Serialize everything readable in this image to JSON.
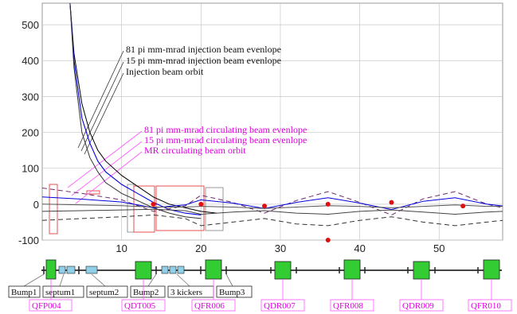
{
  "chart_data": {
    "type": "line",
    "xlabel": "",
    "ylabel": "",
    "xlim": [
      0,
      58
    ],
    "ylim": [
      -100,
      560
    ],
    "x_ticks": [
      "10",
      "20",
      "30",
      "40",
      "50"
    ],
    "y_ticks": [
      "500",
      "400",
      "300",
      "200",
      "100",
      "0",
      "-100"
    ],
    "annotations": {
      "injection": [
        "81 pi mm-mrad injection beam evenlope",
        "15 pi mm-mrad injection beam evenlope",
        "Injection beam orbit"
      ],
      "circulating": [
        "81 pi mm-mrad circulating beam evenlope",
        "15 pi mm-mrad circulating beam evenlope",
        "MR circulating beam orbit"
      ]
    },
    "series": [
      {
        "x": [
          3.5,
          4,
          5,
          6,
          7,
          8,
          10,
          12,
          14,
          16,
          18,
          20,
          22
        ],
        "values": [
          560,
          420,
          280,
          200,
          150,
          120,
          80,
          50,
          20,
          0,
          -10,
          -20,
          -25
        ]
      },
      {
        "x": [
          3.5,
          4,
          5,
          6,
          7,
          8,
          10,
          12,
          14,
          16,
          18,
          20
        ],
        "values": [
          560,
          400,
          240,
          170,
          120,
          90,
          55,
          30,
          5,
          -15,
          -25,
          -30
        ]
      },
      {
        "x": [
          3.5,
          4,
          5,
          6,
          7,
          8,
          10,
          12,
          14,
          16,
          18,
          20
        ],
        "values": [
          560,
          380,
          200,
          130,
          90,
          60,
          30,
          10,
          -10,
          -25,
          -35,
          -40
        ]
      },
      {
        "x": [
          0,
          5,
          10,
          14,
          18,
          20,
          24,
          28,
          32,
          36,
          40,
          44,
          48,
          52,
          56,
          58
        ],
        "values": [
          45,
          30,
          12,
          -20,
          -5,
          25,
          5,
          -25,
          10,
          35,
          5,
          -30,
          15,
          35,
          0,
          -10
        ]
      },
      {
        "x": [
          0,
          5,
          10,
          14,
          18,
          20,
          24,
          28,
          32,
          36,
          40,
          44,
          48,
          52,
          56,
          58
        ],
        "values": [
          -45,
          -40,
          -35,
          -30,
          -40,
          -60,
          -50,
          -40,
          -55,
          -60,
          -45,
          -35,
          -50,
          -60,
          -50,
          -45
        ]
      },
      {
        "x": [
          0,
          5,
          10,
          14,
          18,
          20,
          24,
          28,
          32,
          36,
          40,
          44,
          48,
          52,
          56,
          58
        ],
        "values": [
          20,
          14,
          6,
          -10,
          -2,
          12,
          3,
          -12,
          5,
          18,
          3,
          -15,
          8,
          18,
          0,
          -5
        ]
      },
      {
        "x": [
          0,
          5,
          10,
          14,
          18,
          20,
          24,
          28,
          32,
          36,
          40,
          44,
          48,
          52,
          56,
          58
        ],
        "values": [
          -20,
          -18,
          -16,
          -14,
          -18,
          -28,
          -22,
          -18,
          -25,
          -28,
          -20,
          -16,
          -22,
          -28,
          -22,
          -20
        ]
      },
      {
        "x": [
          0,
          5,
          10,
          14,
          18,
          20,
          24,
          28,
          32,
          36,
          40,
          44,
          48,
          52,
          56,
          58
        ],
        "values": [
          0,
          -2,
          -4,
          -8,
          -8,
          -6,
          -8,
          -12,
          -8,
          -4,
          -6,
          -10,
          -6,
          -2,
          -6,
          -6
        ]
      }
    ],
    "orbit_markers": {
      "x": [
        14,
        20,
        28,
        36,
        44,
        53
      ],
      "values": [
        0,
        0,
        -5,
        0,
        5,
        -5
      ]
    },
    "extra_marker": {
      "x": 36,
      "value": -100
    },
    "elements_row1": [
      "Bump1",
      "septum1",
      "septum2",
      "Bump2",
      "3 kickers",
      "Bump3"
    ],
    "elements_row2": [
      "QFP004",
      "QDT005",
      "QFR006",
      "QDR007",
      "QFR008",
      "QDR009",
      "QFR010"
    ]
  }
}
